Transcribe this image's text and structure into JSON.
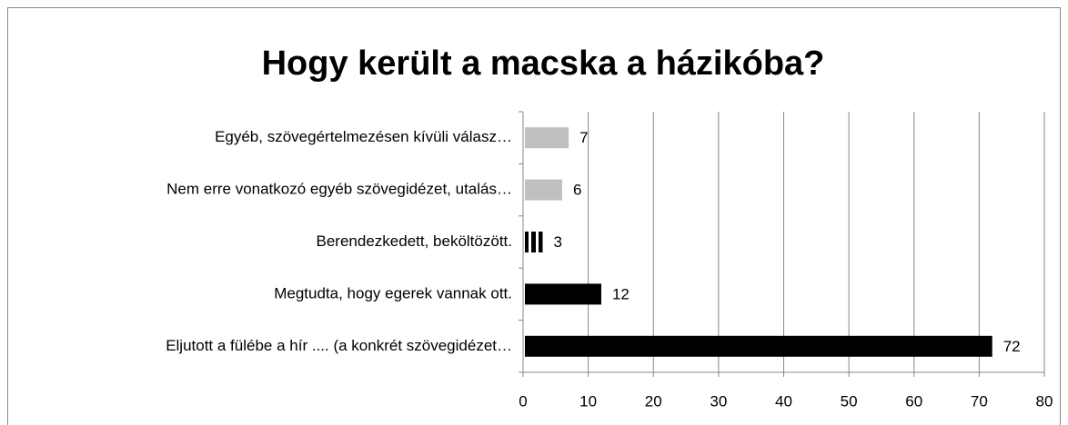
{
  "chart_data": {
    "type": "barh",
    "title": "Hogy került a macska a házikóba?",
    "categories": [
      "Egyéb, szövegértelmezésen kívüli válasz…",
      "Nem erre vonatkozó egyéb szövegidézet, utalás…",
      "Berendezkedett, beköltözött.",
      "Megtudta, hogy egerek vannak ott.",
      "Eljutott a fülébe a hír .... (a konkrét szövegidézet…"
    ],
    "values": [
      7,
      6,
      3,
      12,
      72
    ],
    "colors": [
      "#c0c0c0",
      "#c0c0c0",
      "#000000",
      "#000000",
      "#000000"
    ],
    "hatch": [
      false,
      false,
      true,
      false,
      false
    ],
    "xlim": [
      0,
      80
    ],
    "xticks": [
      0,
      10,
      20,
      30,
      40,
      50,
      60,
      70,
      80
    ],
    "grid": true
  }
}
